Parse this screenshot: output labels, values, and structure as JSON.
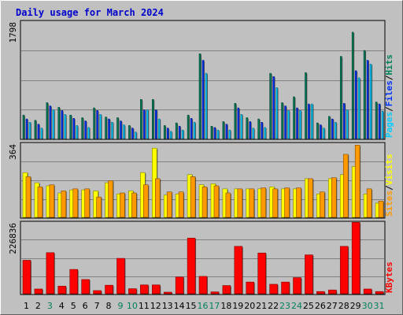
{
  "chart_data": {
    "type": "bar",
    "title": "Daily usage for March 2024",
    "categories": [
      "1",
      "2",
      "3",
      "4",
      "5",
      "6",
      "7",
      "8",
      "9",
      "10",
      "11",
      "12",
      "13",
      "14",
      "15",
      "16",
      "17",
      "18",
      "19",
      "20",
      "21",
      "22",
      "23",
      "24",
      "25",
      "26",
      "27",
      "28",
      "29",
      "30",
      "31"
    ],
    "weekend_days": [
      "3",
      "9",
      "10",
      "16",
      "17",
      "23",
      "24",
      "30",
      "31"
    ],
    "panels": [
      {
        "id": "hits-files-pages",
        "ymax": 1798,
        "ymax_label": "1798",
        "legend": [
          "Pages",
          "/",
          "Files",
          "/",
          "Hits"
        ],
        "series": [
          {
            "name": "Hits",
            "color": "#00805c",
            "values": [
              360,
              280,
              550,
              480,
              360,
              320,
              470,
              330,
              320,
              200,
              600,
              600,
              200,
              240,
              360,
              1300,
              190,
              260,
              540,
              320,
              300,
              1000,
              550,
              640,
              1010,
              240,
              340,
              1260,
              1630,
              1350,
              560
            ]
          },
          {
            "name": "Files",
            "color": "#0033ff",
            "values": [
              300,
              220,
              500,
              430,
              310,
              270,
              430,
              300,
              270,
              160,
              440,
              440,
              160,
              190,
              310,
              1200,
              170,
              220,
              470,
              260,
              250,
              950,
              500,
              470,
              530,
              210,
              300,
              540,
              1040,
              1200,
              530
            ]
          },
          {
            "name": "Pages",
            "color": "#00ccff",
            "values": [
              250,
              160,
              440,
              370,
              200,
              170,
              370,
              250,
              210,
              100,
              440,
              300,
              110,
              130,
              250,
              1000,
              130,
              130,
              370,
              160,
              170,
              780,
              430,
              430,
              530,
              160,
              250,
              440,
              930,
              1140,
              420
            ]
          }
        ]
      },
      {
        "id": "sites-visits",
        "ymax": 364,
        "ymax_label": "364",
        "legend": [
          "Sites",
          "/",
          "Visits"
        ],
        "series": [
          {
            "name": "Visits",
            "color": "#ffff00",
            "values": [
              220,
              170,
              155,
              120,
              135,
              135,
              130,
              170,
              115,
              130,
              220,
              340,
              110,
              115,
              210,
              160,
              165,
              140,
              140,
              140,
              140,
              150,
              140,
              140,
              190,
              115,
              190,
              210,
              250,
              115,
              70
            ]
          },
          {
            "name": "Sites",
            "color": "#ff9900",
            "values": [
              200,
              150,
              160,
              130,
              140,
              140,
              100,
              180,
              120,
              120,
              160,
              190,
              125,
              125,
              200,
              150,
              155,
              120,
              140,
              140,
              145,
              140,
              145,
              145,
              190,
              125,
              195,
              310,
              355,
              140,
              80
            ]
          }
        ]
      },
      {
        "id": "kbytes",
        "ymax": 226836,
        "ymax_label": "226836",
        "legend": [
          "KBytes"
        ],
        "series": [
          {
            "name": "KBytes",
            "color": "#ff0000",
            "values": [
              106000,
              15000,
              130000,
              24000,
              77000,
              45000,
              10000,
              27000,
              112000,
              16000,
              28000,
              28000,
              5000,
              53000,
              176000,
              55000,
              6000,
              26000,
              150000,
              37000,
              129000,
              30000,
              37000,
              51000,
              123000,
              7000,
              12000,
              150000,
              226000,
              15000,
              7000
            ]
          }
        ]
      }
    ]
  }
}
